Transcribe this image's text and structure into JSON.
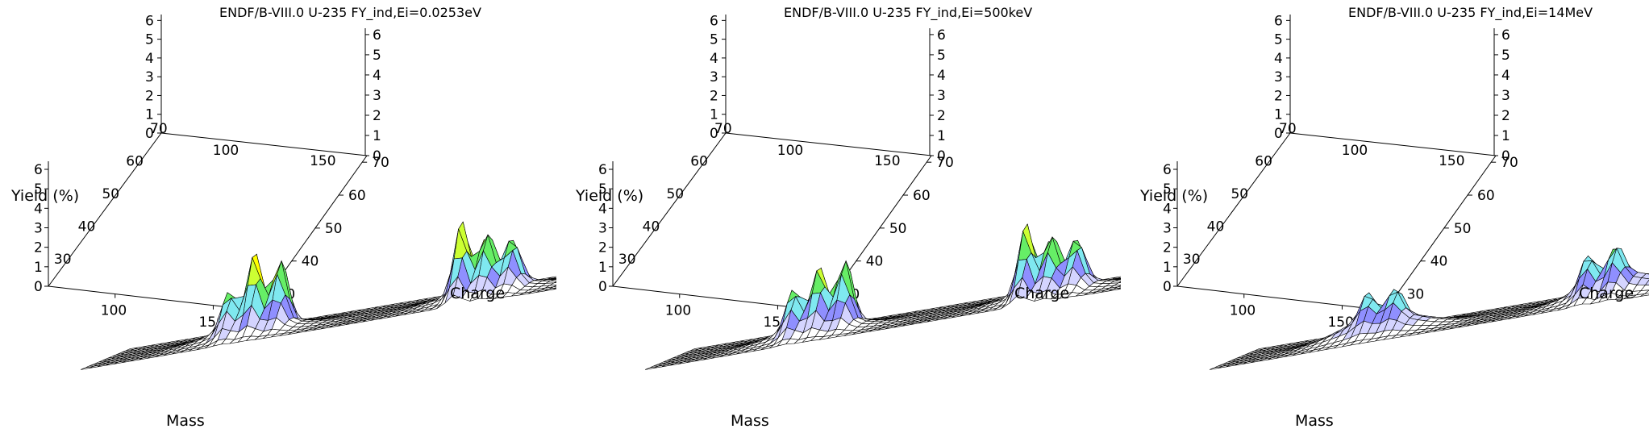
{
  "chart_data": [
    {
      "type": "surface",
      "title": "ENDF/B-VIII.0 U-235 FY_ind,Ei=0.0253eV",
      "xlabel": "Mass",
      "ylabel": "Charge",
      "zlabel": "Yield (%)",
      "x_ticks": [
        "100",
        "150"
      ],
      "y_ticks": [
        "30",
        "40",
        "50",
        "60",
        "70"
      ],
      "z_ticks": [
        "0",
        "1",
        "2",
        "3",
        "4",
        "5",
        "6"
      ],
      "xlim": [
        66,
        172
      ],
      "ylim": [
        25,
        72
      ],
      "zlim": [
        0,
        6.5
      ],
      "peaks": [
        {
          "mass": 134,
          "charge": 52,
          "yield": 3.0
        },
        {
          "mass": 138,
          "charge": 54,
          "yield": 2.2
        },
        {
          "mass": 142,
          "charge": 56,
          "yield": 1.8
        },
        {
          "mass": 91,
          "charge": 36,
          "yield": 1.6
        },
        {
          "mass": 95,
          "charge": 38,
          "yield": 2.9
        },
        {
          "mass": 99,
          "charge": 40,
          "yield": 2.6
        }
      ],
      "colorscale": [
        "#0000ff",
        "#00ffff",
        "#00ff00",
        "#ffff00",
        "#ff0000"
      ]
    },
    {
      "type": "surface",
      "title": "ENDF/B-VIII.0 U-235 FY_ind,Ei=500keV",
      "xlabel": "Mass",
      "ylabel": "Charge",
      "zlabel": "Yield (%)",
      "x_ticks": [
        "100",
        "150"
      ],
      "y_ticks": [
        "30",
        "40",
        "50",
        "60",
        "70"
      ],
      "z_ticks": [
        "0",
        "1",
        "2",
        "3",
        "4",
        "5",
        "6"
      ],
      "xlim": [
        66,
        172
      ],
      "ylim": [
        25,
        72
      ],
      "zlim": [
        0,
        6.5
      ],
      "peaks": [
        {
          "mass": 134,
          "charge": 52,
          "yield": 2.9
        },
        {
          "mass": 138,
          "charge": 54,
          "yield": 2.1
        },
        {
          "mass": 142,
          "charge": 56,
          "yield": 1.8
        },
        {
          "mass": 91,
          "charge": 36,
          "yield": 1.7
        },
        {
          "mass": 95,
          "charge": 38,
          "yield": 2.3
        },
        {
          "mass": 99,
          "charge": 40,
          "yield": 2.6
        }
      ],
      "colorscale": [
        "#0000ff",
        "#00ffff",
        "#00ff00",
        "#ffff00",
        "#ff0000"
      ]
    },
    {
      "type": "surface",
      "title": "ENDF/B-VIII.0 U-235 FY_ind,Ei=14MeV",
      "xlabel": "Mass",
      "ylabel": "Charge",
      "zlabel": "Yield (%)",
      "x_ticks": [
        "100",
        "150"
      ],
      "y_ticks": [
        "30",
        "40",
        "50",
        "60",
        "70"
      ],
      "z_ticks": [
        "0",
        "1",
        "2",
        "3",
        "4",
        "5",
        "6"
      ],
      "xlim": [
        66,
        172
      ],
      "ylim": [
        25,
        72
      ],
      "zlim": [
        0,
        6.5
      ],
      "peaks": [
        {
          "mass": 133,
          "charge": 52,
          "yield": 1.3
        },
        {
          "mass": 138,
          "charge": 54,
          "yield": 1.3
        },
        {
          "mass": 92,
          "charge": 37,
          "yield": 1.1
        },
        {
          "mass": 97,
          "charge": 39,
          "yield": 1.1
        }
      ],
      "colorscale": [
        "#0000ff",
        "#00ffff",
        "#00ff00",
        "#ffff00",
        "#ff0000"
      ]
    }
  ]
}
